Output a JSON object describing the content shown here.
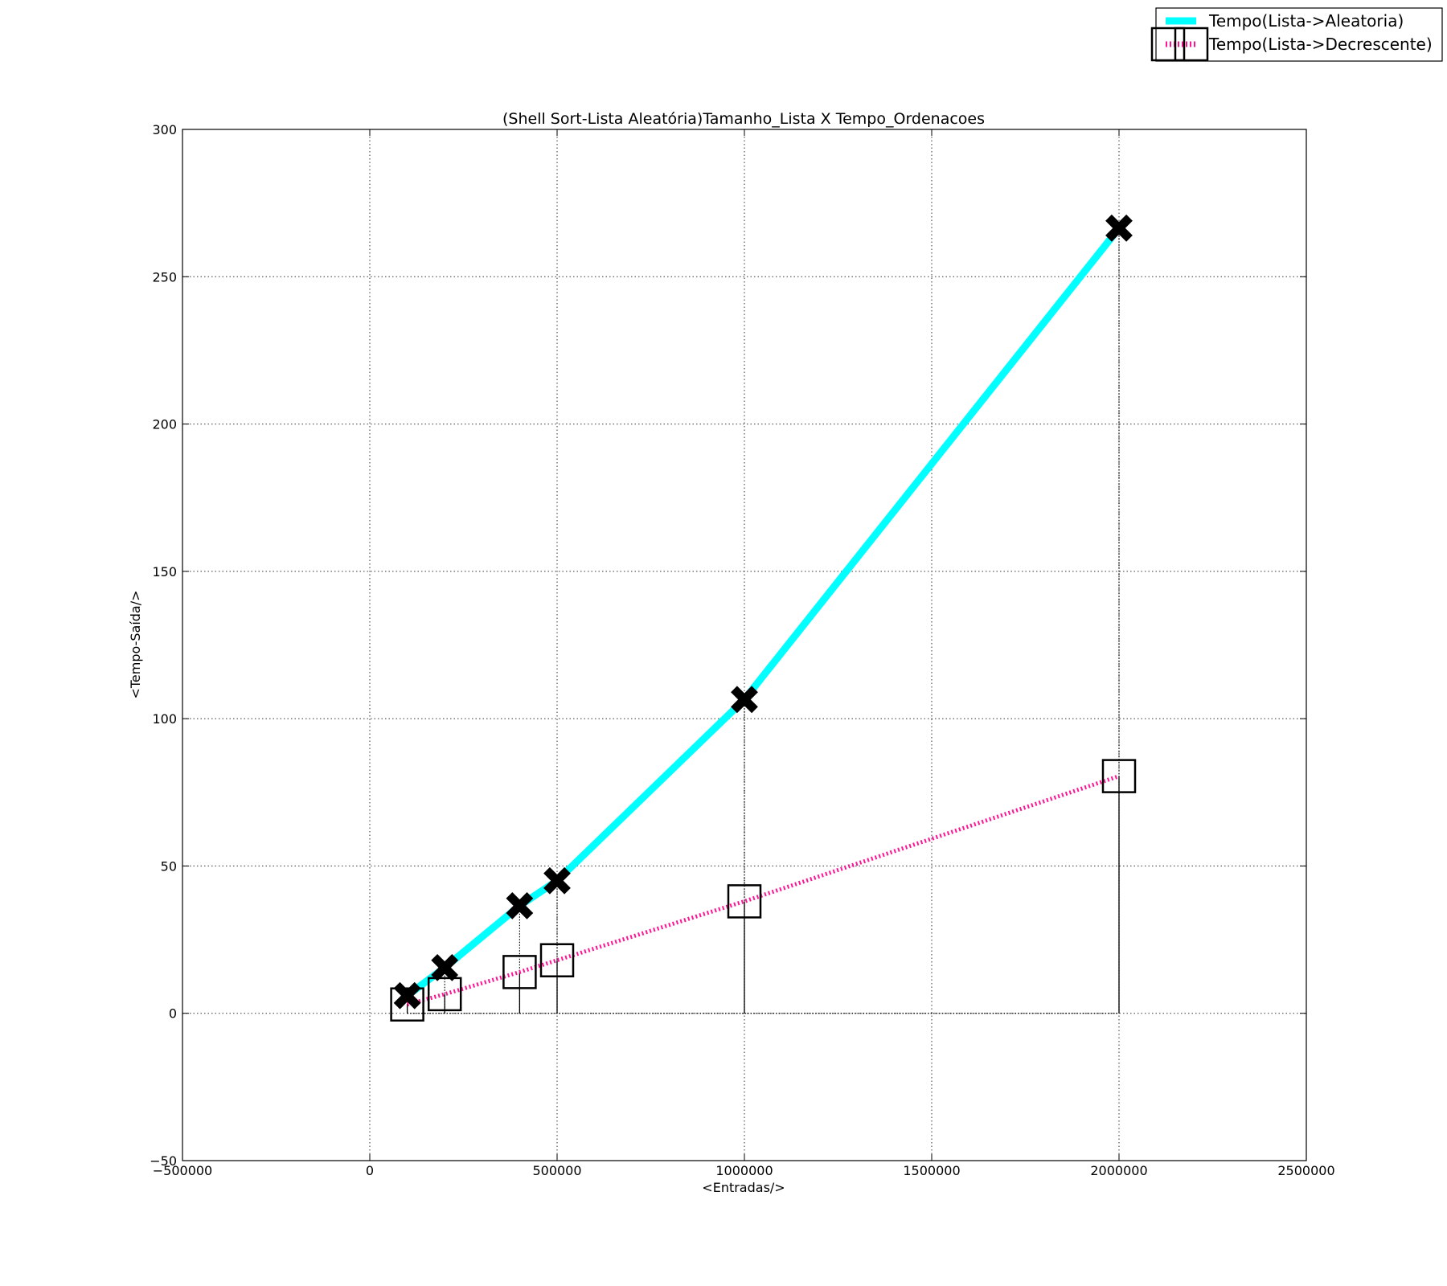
{
  "chart_data": {
    "type": "line",
    "title": "(Shell Sort-Lista Aleatória)Tamanho_Lista X Tempo_Ordenacoes",
    "xlabel": "<Entradas/>",
    "ylabel": "<Tempo-Saída/>",
    "xlim": [
      -500000,
      2500000
    ],
    "ylim": [
      -50,
      300
    ],
    "xticks": [
      -500000,
      0,
      500000,
      1000000,
      1500000,
      2000000,
      2500000
    ],
    "yticks": [
      -50,
      0,
      50,
      100,
      150,
      200,
      250,
      300
    ],
    "xtick_labels": [
      "−500000",
      "0",
      "500000",
      "1000000",
      "1500000",
      "2000000",
      "2500000"
    ],
    "ytick_labels": [
      "−50",
      "0",
      "50",
      "100",
      "150",
      "200",
      "250",
      "300"
    ],
    "grid": true,
    "legend_position": "top-right",
    "x": [
      100000,
      200000,
      400000,
      500000,
      1000000,
      2000000
    ],
    "series": [
      {
        "name": "Tempo(Lista->Aleatoria)",
        "values": [
          6,
          15.5,
          36.5,
          45,
          106.5,
          266.5
        ],
        "color": "#00ffff",
        "style": "solid",
        "marker": "X",
        "marker_color": "#000000"
      },
      {
        "name": "Tempo(Lista->Decrescente)",
        "values": [
          3,
          6.5,
          14,
          18,
          38,
          80.5
        ],
        "color": "#ff1493",
        "style": "dotted",
        "marker": "square-open",
        "marker_color": "#000000"
      }
    ]
  }
}
